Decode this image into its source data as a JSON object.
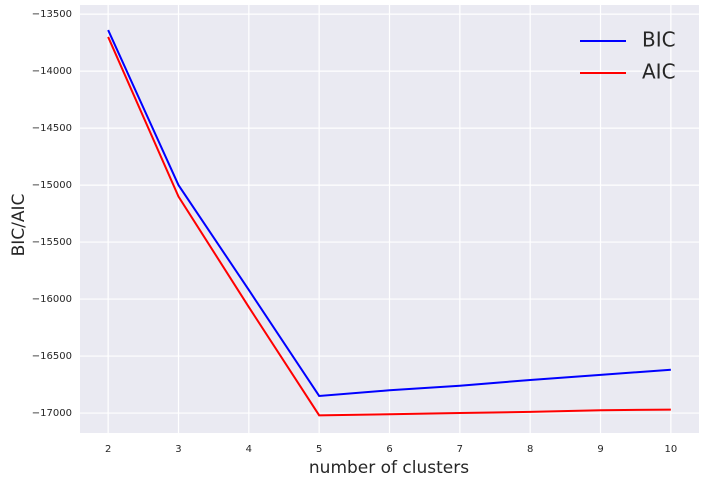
{
  "chart_data": {
    "type": "line",
    "xlabel": "number of clusters",
    "ylabel": "BIC/AIC",
    "x": [
      2,
      3,
      4,
      5,
      6,
      7,
      8,
      9,
      10
    ],
    "series": [
      {
        "name": "BIC",
        "color": "#0000ff",
        "values": [
          -13640,
          -15000,
          -15920,
          -16850,
          -16800,
          -16760,
          -16710,
          -16665,
          -16620
        ]
      },
      {
        "name": "AIC",
        "color": "#ff0000",
        "values": [
          -13700,
          -15100,
          -16070,
          -17020,
          -17010,
          -17000,
          -16990,
          -16975,
          -16970
        ]
      }
    ],
    "xlim": [
      1.6,
      10.4
    ],
    "ylim": [
      -17175,
      -13420
    ],
    "xticks": [
      2,
      3,
      4,
      5,
      6,
      7,
      8,
      9,
      10
    ],
    "yticks": [
      {
        "value": -13500,
        "label": "−13500"
      },
      {
        "value": -14000,
        "label": "−14000"
      },
      {
        "value": -14500,
        "label": "−14500"
      },
      {
        "value": -15000,
        "label": "−15000"
      },
      {
        "value": -15500,
        "label": "−15500"
      },
      {
        "value": -16000,
        "label": "−16000"
      },
      {
        "value": -16500,
        "label": "−16500"
      },
      {
        "value": -17000,
        "label": "−17000"
      }
    ],
    "grid": true,
    "legend": "upper-right"
  }
}
